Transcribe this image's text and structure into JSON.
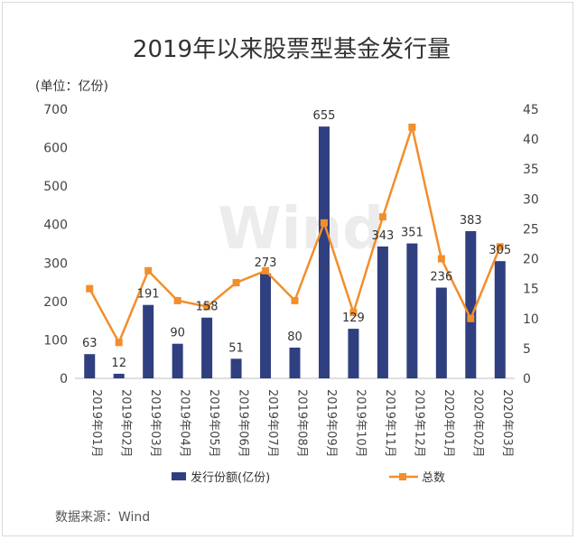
{
  "chart_data": {
    "type": "bar",
    "title": "2019年以来股票型基金发行量",
    "y_left_unit": "(单位：亿份)",
    "categories": [
      "2019年01月",
      "2019年02月",
      "2019年03月",
      "2019年04月",
      "2019年05月",
      "2019年06月",
      "2019年07月",
      "2019年08月",
      "2019年09月",
      "2019年10月",
      "2019年11月",
      "2019年12月",
      "2020年01月",
      "2020年02月",
      "2020年03月"
    ],
    "series": [
      {
        "name": "发行份额(亿份)",
        "type": "bar",
        "axis": "left",
        "color": "#2f3f7f",
        "values": [
          63,
          12,
          191,
          90,
          158,
          51,
          273,
          80,
          655,
          129,
          343,
          351,
          236,
          383,
          305
        ]
      },
      {
        "name": "总数",
        "type": "line",
        "axis": "right",
        "color": "#f28e2b",
        "values": [
          15,
          6,
          18,
          13,
          12,
          16,
          18,
          13,
          26,
          11,
          27,
          42,
          20,
          10,
          22
        ]
      }
    ],
    "y_left": {
      "lim": [
        0,
        700
      ],
      "ticks": [
        0,
        100,
        200,
        300,
        400,
        500,
        600,
        700
      ]
    },
    "y_right": {
      "lim": [
        0,
        45
      ],
      "ticks": [
        0,
        5,
        10,
        15,
        20,
        25,
        30,
        35,
        40,
        45
      ]
    },
    "grid": false,
    "legend_position": "bottom",
    "data_labels": true
  },
  "source": "数据来源：Wind",
  "watermark": "Wind"
}
